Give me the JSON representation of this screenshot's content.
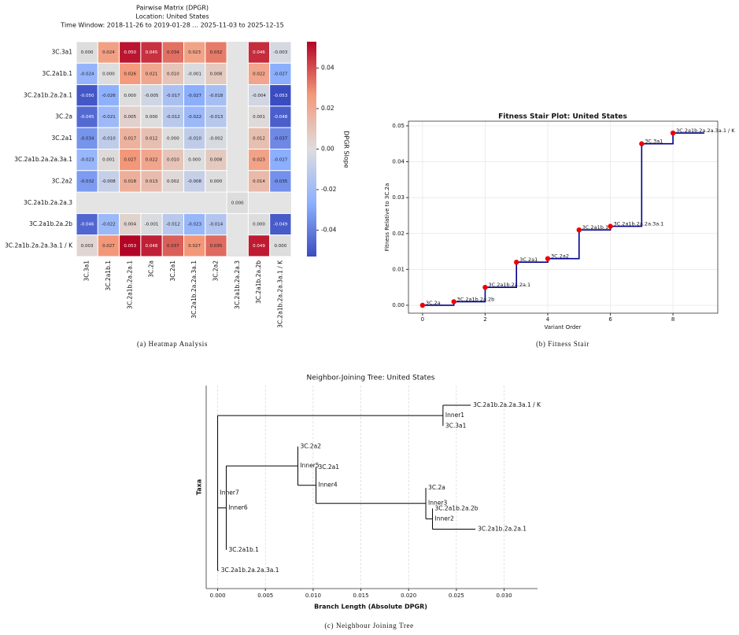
{
  "chart_data": [
    {
      "type": "heatmap",
      "title": "Pairwise Matrix (DPGR)",
      "subtitle": [
        "Location: United States",
        "Time Window: 2018-11-26 to 2019-01-28 ... 2025-11-03 to 2025-12-15"
      ],
      "rows": [
        "3C.3a1",
        "3C.2a1b.1",
        "3C.2a1b.2a.2a.1",
        "3C.2a",
        "3C.2a1",
        "3C.2a1b.2a.2a.3a.1",
        "3C.2a2",
        "3C.2a1b.2a.2a.3",
        "3C.2a1b.2a.2b",
        "3C.2a1b.2a.2a.3a.1 / K"
      ],
      "columns": [
        "3C.3a1",
        "3C.2a1b.1",
        "3C.2a1b.2a.2a.1",
        "3C.2a",
        "3C.2a1",
        "3C.2a1b.2a.2a.3a.1",
        "3C.2a2",
        "3C.2a1b.2a.2a.3",
        "3C.2a1b.2a.2b",
        "3C.2a1b.2a.2a.3a.1 / K"
      ],
      "values": [
        [
          0,
          0.024,
          0.05,
          0.045,
          0.034,
          0.023,
          0.032,
          null,
          0.046,
          -0.003
        ],
        [
          -0.024,
          0,
          0.026,
          0.021,
          0.01,
          -0.001,
          0.008,
          null,
          0.022,
          -0.027
        ],
        [
          -0.05,
          -0.026,
          0,
          -0.005,
          -0.017,
          -0.027,
          -0.018,
          null,
          -0.004,
          -0.053
        ],
        [
          -0.045,
          -0.021,
          0.005,
          0,
          -0.012,
          -0.022,
          -0.013,
          null,
          0.001,
          -0.048
        ],
        [
          -0.034,
          -0.01,
          0.017,
          0.012,
          0,
          -0.01,
          -0.002,
          null,
          0.012,
          -0.037
        ],
        [
          -0.023,
          0.001,
          0.027,
          0.022,
          0.01,
          0,
          0.008,
          null,
          0.023,
          -0.027
        ],
        [
          -0.032,
          -0.008,
          0.018,
          0.013,
          0.002,
          -0.008,
          0,
          null,
          0.014,
          -0.035
        ],
        [
          null,
          null,
          null,
          null,
          null,
          null,
          null,
          0,
          null,
          null
        ],
        [
          -0.046,
          -0.022,
          0.004,
          -0.001,
          -0.012,
          -0.023,
          -0.014,
          null,
          0,
          -0.049
        ],
        [
          0.003,
          0.027,
          0.053,
          0.048,
          0.037,
          0.027,
          0.035,
          null,
          0.049,
          0
        ]
      ],
      "value_labels": [
        [
          "0.000",
          "0.024",
          "0.050",
          "0.045",
          "0.034",
          "0.023",
          "0.032",
          null,
          "0.046",
          "-0.003"
        ],
        [
          "-0.024",
          "0.000",
          "0.026",
          "0.021",
          "0.010",
          "-0.001",
          "0.008",
          null,
          "0.022",
          "-0.027"
        ],
        [
          "-0.050",
          "-0.026",
          "0.000",
          "-0.005",
          "-0.017",
          "-0.027",
          "-0.018",
          null,
          "-0.004",
          "-0.053"
        ],
        [
          "-0.045",
          "-0.021",
          "0.005",
          "0.000",
          "-0.012",
          "-0.022",
          "-0.013",
          null,
          "0.001",
          "-0.048"
        ],
        [
          "-0.034",
          "-0.010",
          "0.017",
          "0.012",
          "0.000",
          "-0.010",
          "-0.002",
          null,
          "0.012",
          "-0.037"
        ],
        [
          "-0.023",
          "0.001",
          "0.027",
          "0.022",
          "0.010",
          "0.000",
          "0.008",
          null,
          "0.023",
          "-0.027"
        ],
        [
          "-0.032",
          "-0.008",
          "0.018",
          "0.013",
          "0.002",
          "-0.008",
          "0.000",
          null,
          "0.014",
          "-0.035"
        ],
        [
          null,
          null,
          null,
          null,
          null,
          null,
          null,
          "0.000",
          null,
          null
        ],
        [
          "-0.046",
          "-0.022",
          "0.004",
          "-0.001",
          "-0.012",
          "-0.023",
          "-0.014",
          null,
          "0.000",
          "-0.049"
        ],
        [
          "0.003",
          "0.027",
          "0.053",
          "0.048",
          "0.037",
          "0.027",
          "0.035",
          null,
          "0.049",
          "0.000"
        ]
      ],
      "colormap": "coolwarm",
      "vlim": [
        -0.053,
        0.053
      ],
      "colorbar_ticks": [
        -0.04,
        -0.02,
        {
          "value": 0,
          "label": "0.00"
        },
        0.02,
        0.04
      ],
      "colorbar_label": "DPGR Slope",
      "caption": "(a) Heatmap Analysis"
    },
    {
      "type": "line",
      "step": "post",
      "title": "Fitness Stair Plot: United States",
      "x_label": "Variant Order",
      "y_label": "Fitness Relative to 3C.2a",
      "x": [
        0,
        1,
        2,
        3,
        4,
        5,
        6,
        7,
        8
      ],
      "labels": [
        "3C.2a",
        "3C.2a1b.2a.2b",
        "3C.2a1b.2a.2a.1",
        "3C.2a1",
        "3C.2a2",
        "3C.2a1b.1",
        "3C.2a1b.2a.2a.3a.1",
        "3C.3a1",
        "3C.2a1b.2a.2a.3a.1 / K"
      ],
      "series": [
        {
          "color": "#00008b",
          "marker_color": "#ee0000",
          "values": [
            0,
            0.001,
            0.005,
            0.012,
            0.013,
            0.021,
            0.022,
            0.045,
            0.048
          ]
        }
      ],
      "xlim": [
        -0.45,
        9.43
      ],
      "xticks": [
        0,
        2,
        4,
        6,
        8
      ],
      "ylim": [
        -0.0022,
        0.0513
      ],
      "yticks": [
        {
          "value": 0,
          "label": "0.00"
        },
        0.01,
        0.02,
        0.03,
        0.04,
        0.05
      ],
      "grid": true,
      "caption": "(b) Fitness Stair"
    },
    {
      "type": "tree",
      "title": "Neighbor-Joining Tree: United States",
      "x_label": "Branch Length (Absolute DPGR)",
      "y_label": "Taxa",
      "nodes": [
        {
          "name": "Inner7",
          "x": 0,
          "parent": null
        },
        {
          "name": "Inner1",
          "x": 0.0236,
          "parent": 0
        },
        {
          "name": "3C.2a1b.2a.2a.3a.1 / K",
          "x": 0.0265,
          "parent": 1
        },
        {
          "name": "3C.3a1",
          "x": 0.0236,
          "parent": 1
        },
        {
          "name": "Inner6",
          "x": 0.0009,
          "parent": 0
        },
        {
          "name": "Inner5",
          "x": 0.0084,
          "parent": 4
        },
        {
          "name": "3C.2a2",
          "x": 0.0084,
          "parent": 5
        },
        {
          "name": "Inner4",
          "x": 0.0103,
          "parent": 5
        },
        {
          "name": "3C.2a1",
          "x": 0.0103,
          "parent": 7
        },
        {
          "name": "Inner3",
          "x": 0.0218,
          "parent": 7
        },
        {
          "name": "3C.2a",
          "x": 0.0218,
          "parent": 9
        },
        {
          "name": "Inner2",
          "x": 0.0225,
          "parent": 9
        },
        {
          "name": "3C.2a1b.2a.2b",
          "x": 0.0225,
          "parent": 11
        },
        {
          "name": "3C.2a1b.2a.2a.1",
          "x": 0.027,
          "parent": 11
        },
        {
          "name": "3C.2a1b.1",
          "x": 0.0009,
          "parent": 4
        },
        {
          "name": "3C.2a1b.2a.2a.3a.1",
          "x": 0.0001,
          "parent": 0
        }
      ],
      "xlim": [
        -0.0012,
        0.0335
      ],
      "xticks": [
        {
          "value": 0,
          "label": "0.000"
        },
        0.005,
        {
          "value": 0.01,
          "label": "0.010"
        },
        0.015,
        {
          "value": 0.02,
          "label": "0.020"
        },
        0.025,
        {
          "value": 0.03,
          "label": "0.030"
        }
      ],
      "grid": true,
      "caption": "(c) Neighbour Joining Tree"
    }
  ]
}
